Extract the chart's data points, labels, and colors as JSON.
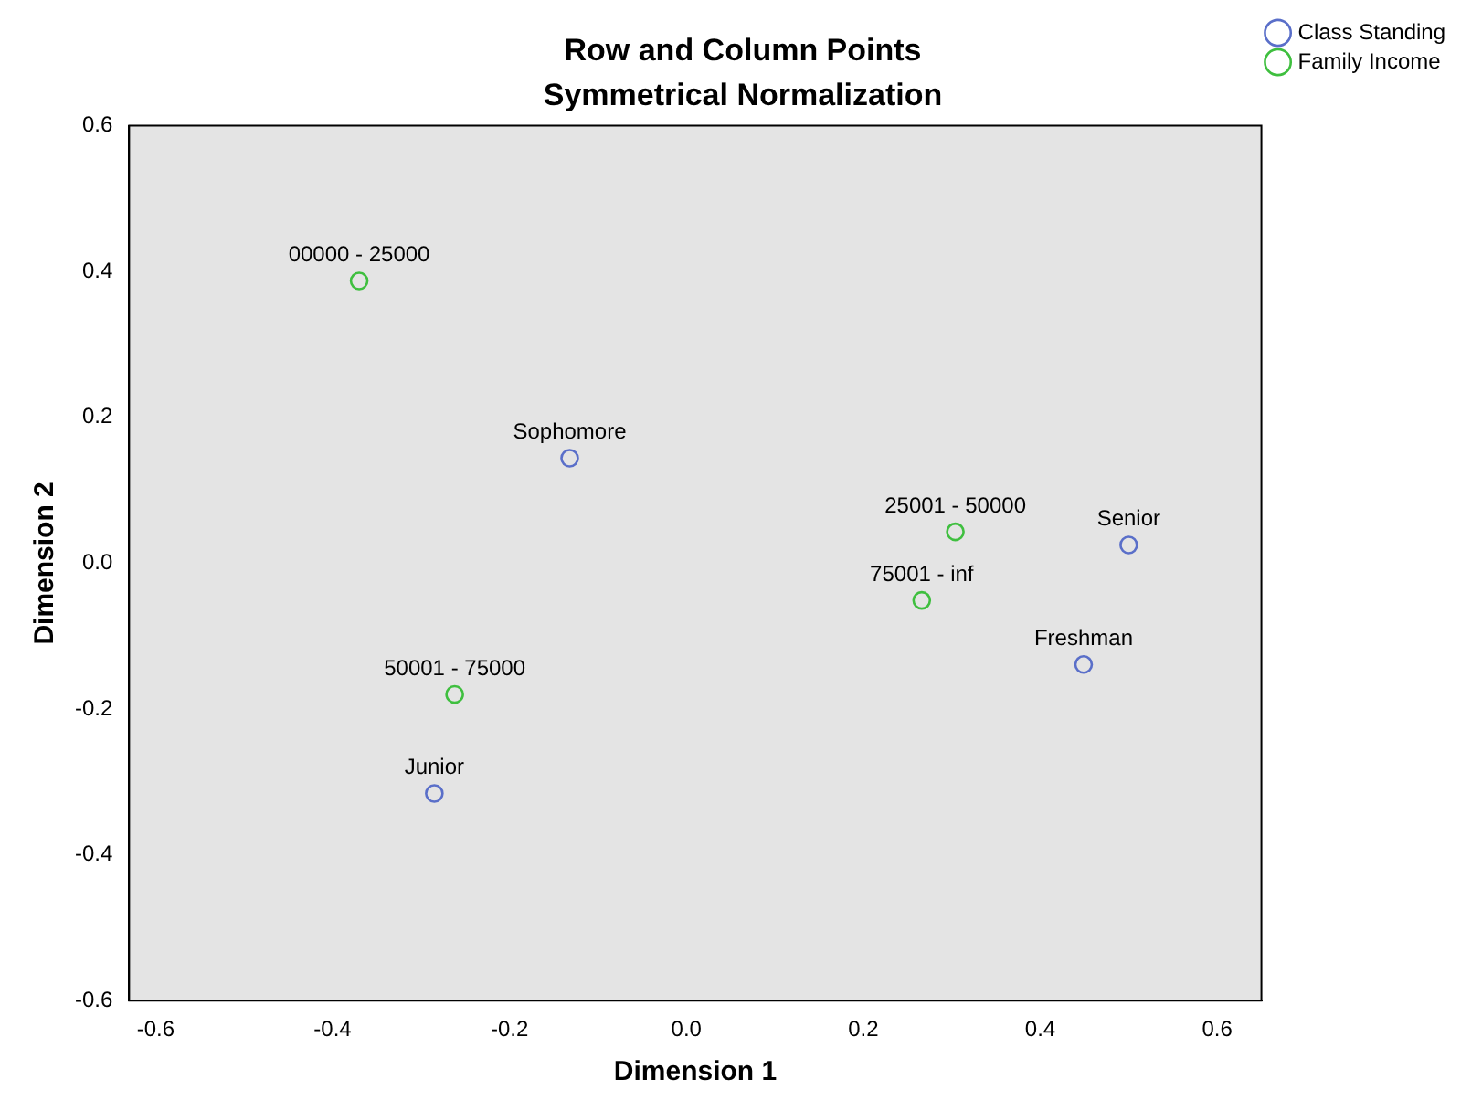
{
  "chart_data": {
    "type": "scatter",
    "title": "Row and Column Points",
    "subtitle": "Symmetrical Normalization",
    "xlabel": "Dimension 1",
    "ylabel": "Dimension 2",
    "xlim": [
      -0.63,
      0.65
    ],
    "xticks": [
      -0.6,
      -0.4,
      -0.2,
      {
        "value": 0,
        "label": "0.0"
      },
      0.2,
      0.4,
      0.6
    ],
    "ylim": [
      -0.6,
      0.6
    ],
    "yticks": [
      -0.6,
      -0.4,
      -0.2,
      {
        "value": 0,
        "label": "0.0"
      },
      0.2,
      0.4,
      0.6
    ],
    "grid": false,
    "legend": "top right",
    "marker": "circle",
    "series": [
      {
        "name": "Class Standing",
        "color": "#5a6fc9",
        "x": [
          -0.132,
          0.5,
          0.449,
          -0.285
        ],
        "values": [
          0.144,
          0.025,
          -0.139,
          -0.316
        ]
      },
      {
        "name": "Family Income",
        "color": "#3fbf3f",
        "x": [
          -0.37,
          0.304,
          0.266,
          -0.262
        ],
        "values": [
          0.387,
          0.043,
          -0.051,
          -0.18
        ]
      }
    ],
    "annotations": [
      {
        "text": "Sophomore",
        "x": -0.132,
        "y": 0.144
      },
      {
        "text": "Senior",
        "x": 0.5,
        "y": 0.025
      },
      {
        "text": "Freshman",
        "x": 0.449,
        "y": -0.139
      },
      {
        "text": "Junior",
        "x": -0.285,
        "y": -0.316
      },
      {
        "text": "00000 - 25000",
        "x": -0.37,
        "y": 0.387
      },
      {
        "text": "25001 - 50000",
        "x": 0.304,
        "y": 0.043
      },
      {
        "text": "75001 - inf",
        "x": 0.266,
        "y": -0.051
      },
      {
        "text": "50001 - 75000",
        "x": -0.262,
        "y": -0.18
      }
    ]
  }
}
